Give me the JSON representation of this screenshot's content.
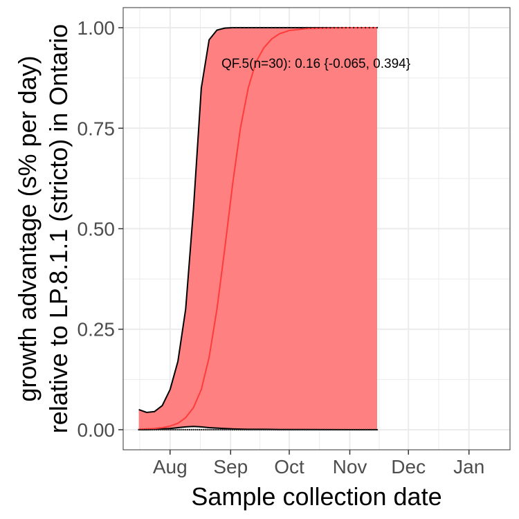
{
  "chart_data": {
    "type": "area",
    "title": "",
    "xlabel": "Sample collection date",
    "ylabel_line1": "growth advantage (s% per day)",
    "ylabel_line2": "relative to LP.8.1.1 (stricto) in Ontario",
    "x_ticks": [
      {
        "date": "2025-08-01",
        "label": "Aug"
      },
      {
        "date": "2025-09-01",
        "label": "Sep"
      },
      {
        "date": "2025-10-01",
        "label": "Oct"
      },
      {
        "date": "2025-11-01",
        "label": "Nov"
      },
      {
        "date": "2025-12-01",
        "label": "Dec"
      },
      {
        "date": "2026-01-01",
        "label": "Jan"
      }
    ],
    "y_ticks": [
      0,
      0.25,
      0.5,
      0.75,
      1.0
    ],
    "y_tick_labels": [
      "0.00",
      "0.25",
      "0.50",
      "0.75",
      "1.00"
    ],
    "xlim": [
      "2025-07-08",
      "2026-01-22"
    ],
    "ylim": [
      -0.05,
      1.05
    ],
    "grid": true,
    "colors": {
      "ribbon": "#ff8080",
      "fit_line": "#ff3b3b",
      "ci_line": "#000000",
      "grid": "#ebebeb",
      "panel_border": "#333333"
    },
    "annotation": "QF.5(n=30): 0.16 {-0.065, 0.394}",
    "series": {
      "date": [
        "2025-07-16",
        "2025-07-20",
        "2025-07-24",
        "2025-07-28",
        "2025-08-01",
        "2025-08-05",
        "2025-08-09",
        "2025-08-13",
        "2025-08-17",
        "2025-08-21",
        "2025-08-25",
        "2025-08-29",
        "2025-09-02",
        "2025-09-06",
        "2025-09-10",
        "2025-09-14",
        "2025-09-18",
        "2025-09-22",
        "2025-09-26",
        "2025-10-01",
        "2025-10-10",
        "2025-10-20",
        "2025-11-01",
        "2025-11-15"
      ],
      "fit": [
        0.001,
        0.002,
        0.003,
        0.005,
        0.009,
        0.016,
        0.03,
        0.055,
        0.1,
        0.18,
        0.3,
        0.45,
        0.61,
        0.75,
        0.85,
        0.915,
        0.95,
        0.972,
        0.985,
        0.993,
        0.998,
        0.999,
        1.0,
        1.0
      ],
      "upper": [
        0.05,
        0.043,
        0.045,
        0.06,
        0.1,
        0.17,
        0.3,
        0.55,
        0.85,
        0.97,
        0.994,
        0.999,
        1.0,
        1.0,
        1.0,
        1.0,
        1.0,
        1.0,
        1.0,
        1.0,
        1.0,
        1.0,
        1.0,
        1.0
      ],
      "lower": [
        0.0,
        0.0,
        0.001,
        0.002,
        0.003,
        0.005,
        0.007,
        0.008,
        0.007,
        0.005,
        0.004,
        0.003,
        0.002,
        0.0015,
        0.001,
        0.001,
        0.001,
        0.0008,
        0.0005,
        0.0003,
        0.0002,
        0.0001,
        0.0,
        0.0
      ]
    }
  }
}
